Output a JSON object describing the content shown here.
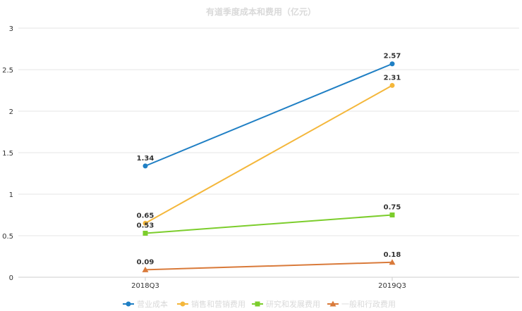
{
  "chart_data": {
    "type": "line",
    "title": "有道季度成本和费用（亿元）",
    "categories": [
      "2018Q3",
      "2019Q3"
    ],
    "ylim": [
      0,
      3
    ],
    "yticks": [
      "0",
      "0.5",
      "1",
      "1.5",
      "2",
      "2.5",
      "3"
    ],
    "grid": true,
    "legend_position": "bottom",
    "series": [
      {
        "name": "营业成本",
        "values": [
          1.34,
          2.57
        ],
        "labels": [
          "1.34",
          "2.57"
        ],
        "color": "#1f7fc4",
        "marker": "circle"
      },
      {
        "name": "销售和营销费用",
        "values": [
          0.65,
          2.31
        ],
        "labels": [
          "0.65",
          "2.31"
        ],
        "color": "#f4b73b",
        "marker": "circle"
      },
      {
        "name": "研究和发展费用",
        "values": [
          0.53,
          0.75
        ],
        "labels": [
          "0.53",
          "0.75"
        ],
        "color": "#7ccd2c",
        "marker": "square"
      },
      {
        "name": "一般和行政费用",
        "values": [
          0.09,
          0.18
        ],
        "labels": [
          "0.09",
          "0.18"
        ],
        "color": "#d97a3a",
        "marker": "triangle"
      }
    ]
  }
}
